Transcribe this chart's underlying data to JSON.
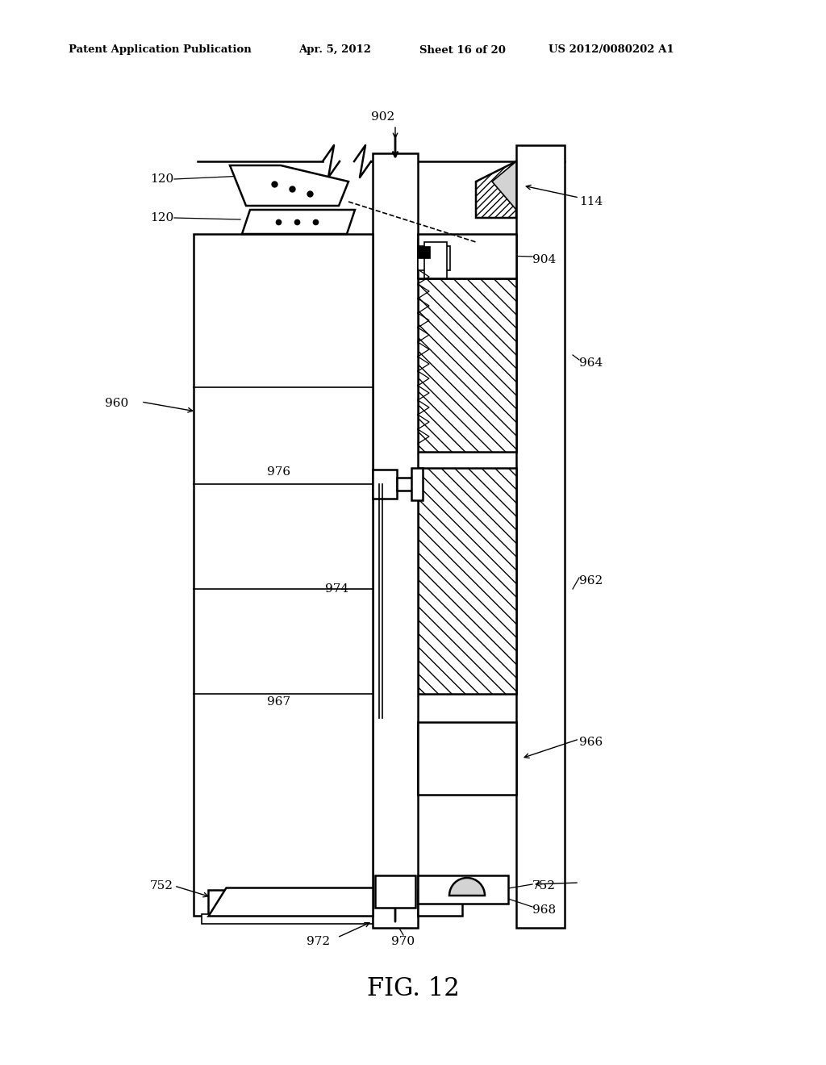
{
  "bg_color": "#ffffff",
  "header_text": "Patent Application Publication",
  "header_date": "Apr. 5, 2012",
  "header_sheet": "Sheet 16 of 20",
  "header_patent": "US 2012/0080202 A1",
  "figure_label": "FIG. 12"
}
